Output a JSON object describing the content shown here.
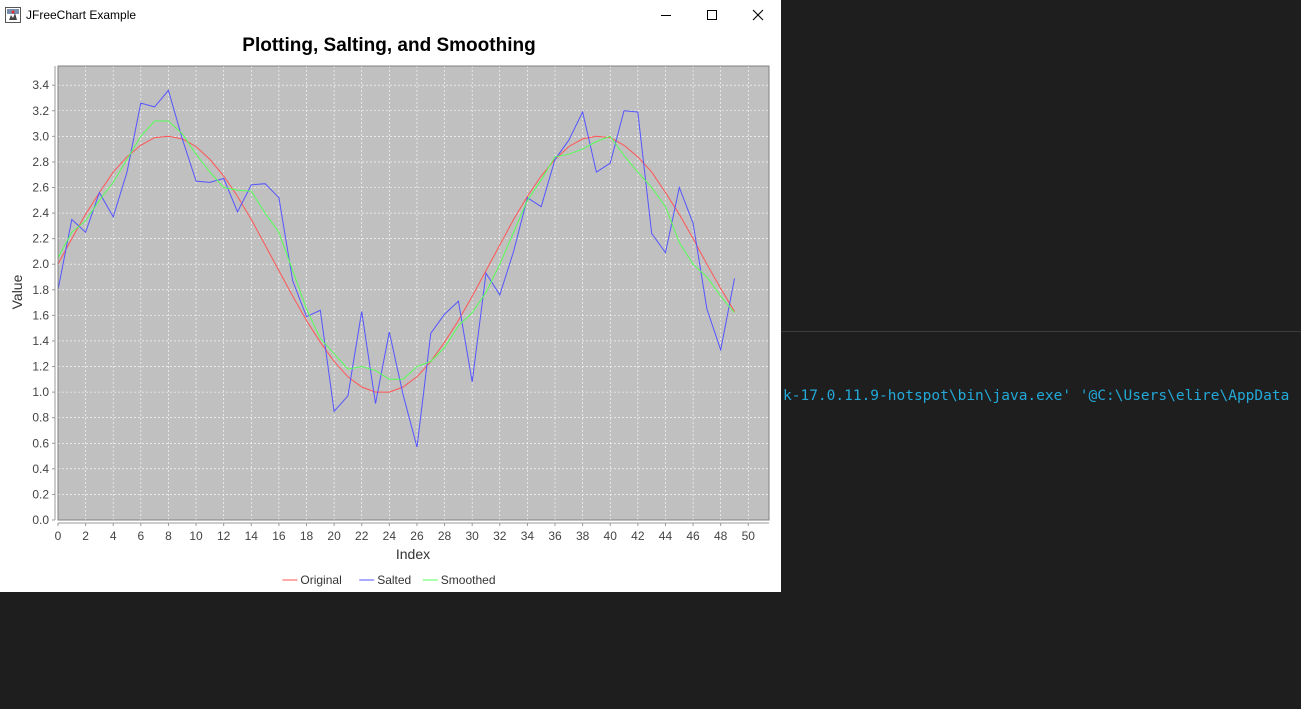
{
  "window": {
    "title": "JFreeChart Example",
    "icon": "java-app-icon",
    "controls": [
      "minimize-icon",
      "maximize-icon",
      "close-icon"
    ]
  },
  "terminal": {
    "line": "k-17.0.11.9-hotspot\\bin\\java.exe' '@C:\\Users\\elire\\AppData",
    "color": "#23a8d8"
  },
  "chart_data": {
    "type": "line",
    "title": "Plotting, Salting, and Smoothing",
    "xlabel": "Index",
    "ylabel": "Value",
    "xlim": [
      0,
      51.5
    ],
    "ylim": [
      0,
      3.55
    ],
    "xticks": [
      0,
      2,
      4,
      6,
      8,
      10,
      12,
      14,
      16,
      18,
      20,
      22,
      24,
      26,
      28,
      30,
      32,
      34,
      36,
      38,
      40,
      42,
      44,
      46,
      48,
      50
    ],
    "yticks": [
      0.0,
      0.2,
      0.4,
      0.6,
      0.8,
      1.0,
      1.2,
      1.4,
      1.6,
      1.8,
      2.0,
      2.2,
      2.4,
      2.6,
      2.8,
      3.0,
      3.2,
      3.4
    ],
    "grid": true,
    "plot_background": "#c0c0c0",
    "legend_position": "bottom",
    "series": [
      {
        "name": "Original",
        "color": "#ff5555",
        "x": [
          0,
          1,
          2,
          3,
          4,
          5,
          6,
          7,
          8,
          9,
          10,
          11,
          12,
          13,
          14,
          15,
          16,
          17,
          18,
          19,
          20,
          21,
          22,
          23,
          24,
          25,
          26,
          27,
          28,
          29,
          30,
          31,
          32,
          33,
          34,
          35,
          36,
          37,
          38,
          39,
          40,
          41,
          42,
          43,
          44,
          45,
          46,
          47,
          48,
          49
        ],
        "y": [
          2.0,
          2.2,
          2.39,
          2.56,
          2.72,
          2.84,
          2.93,
          2.99,
          3.0,
          2.98,
          2.92,
          2.82,
          2.69,
          2.53,
          2.35,
          2.15,
          1.95,
          1.75,
          1.56,
          1.39,
          1.24,
          1.12,
          1.04,
          1.0,
          1.0,
          1.04,
          1.12,
          1.24,
          1.39,
          1.56,
          1.75,
          1.95,
          2.15,
          2.35,
          2.53,
          2.69,
          2.82,
          2.92,
          2.98,
          3.0,
          2.99,
          2.93,
          2.84,
          2.72,
          2.56,
          2.39,
          2.2,
          2.0,
          1.81,
          1.63
        ]
      },
      {
        "name": "Salted",
        "color": "#5555ff",
        "x": [
          0,
          1,
          2,
          3,
          4,
          5,
          6,
          7,
          8,
          9,
          10,
          11,
          12,
          13,
          14,
          15,
          16,
          17,
          18,
          19,
          20,
          21,
          22,
          23,
          24,
          25,
          26,
          27,
          28,
          29,
          30,
          31,
          32,
          33,
          34,
          35,
          36,
          37,
          38,
          39,
          40,
          41,
          42,
          43,
          44,
          45,
          46,
          47,
          48,
          49
        ],
        "y": [
          1.8,
          2.35,
          2.25,
          2.56,
          2.37,
          2.72,
          3.26,
          3.23,
          3.36,
          2.98,
          2.65,
          2.64,
          2.67,
          2.41,
          2.62,
          2.63,
          2.52,
          1.87,
          1.59,
          1.64,
          0.85,
          0.97,
          1.63,
          0.91,
          1.47,
          0.98,
          0.57,
          1.46,
          1.61,
          1.71,
          1.08,
          1.93,
          1.76,
          2.1,
          2.52,
          2.45,
          2.82,
          2.97,
          3.19,
          2.72,
          2.79,
          3.2,
          3.19,
          2.24,
          2.09,
          2.6,
          2.32,
          1.65,
          1.33,
          1.89
        ]
      },
      {
        "name": "Smoothed",
        "color": "#55ff55",
        "x": [
          0,
          1,
          2,
          3,
          4,
          5,
          6,
          7,
          8,
          9,
          10,
          11,
          12,
          13,
          14,
          15,
          16,
          17,
          18,
          19,
          20,
          21,
          22,
          23,
          24,
          25,
          26,
          27,
          28,
          29,
          30,
          31,
          32,
          33,
          34,
          35,
          36,
          37,
          38,
          39,
          40,
          41,
          42,
          43,
          44,
          45,
          46,
          47,
          48,
          49
        ],
        "y": [
          2.05,
          2.25,
          2.34,
          2.5,
          2.64,
          2.82,
          3.0,
          3.12,
          3.12,
          3.02,
          2.86,
          2.72,
          2.6,
          2.58,
          2.57,
          2.4,
          2.25,
          1.95,
          1.65,
          1.42,
          1.3,
          1.18,
          1.2,
          1.17,
          1.1,
          1.1,
          1.2,
          1.24,
          1.35,
          1.52,
          1.62,
          1.78,
          2.0,
          2.25,
          2.5,
          2.66,
          2.84,
          2.86,
          2.9,
          2.96,
          3.0,
          2.85,
          2.72,
          2.6,
          2.45,
          2.17,
          2.0,
          1.9,
          1.75,
          1.62
        ]
      }
    ]
  }
}
